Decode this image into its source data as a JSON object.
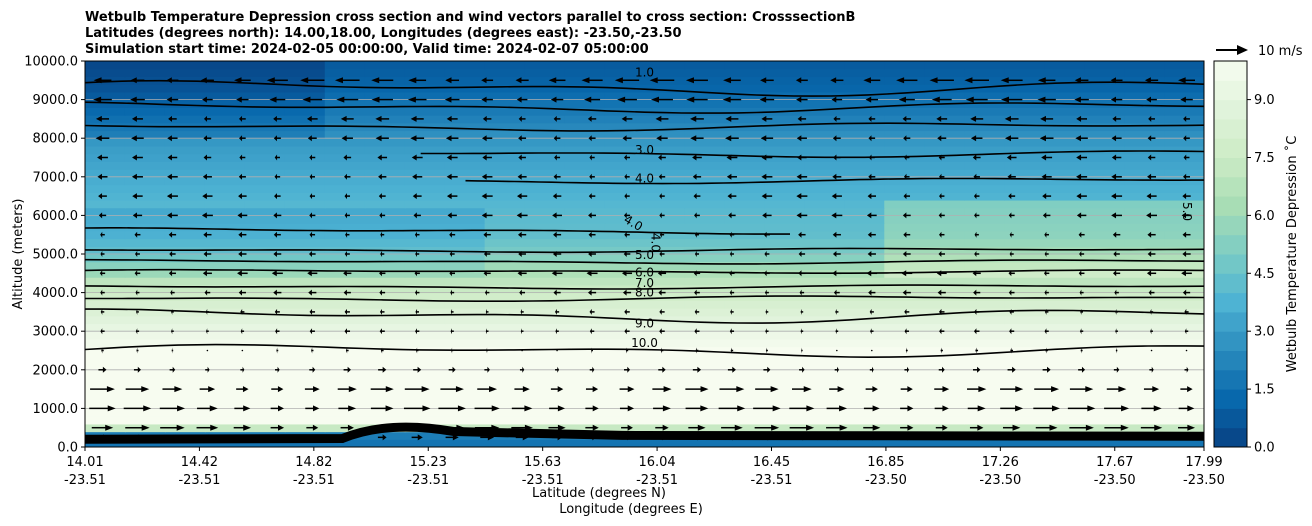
{
  "chart_data": {
    "type": "heatmap",
    "title_lines": [
      "Wetbulb Temperature Depression cross section and wind vectors parallel to cross section: CrosssectionB",
      "Latitudes (degrees north): 14.00,18.00, Longitudes (degrees east): -23.50,-23.50",
      "Simulation start time: 2024-02-05 00:00:00, Valid time: 2024-02-07 05:00:00"
    ],
    "xlabel": "Latitude (degrees N)",
    "xlabel2": "Longitude (degrees E)",
    "ylabel": "Altitude (meters)",
    "ylim": [
      0,
      10000
    ],
    "x_ticks": [
      {
        "lat": "14.01",
        "lon": "-23.51"
      },
      {
        "lat": "14.42",
        "lon": "-23.51"
      },
      {
        "lat": "14.82",
        "lon": "-23.51"
      },
      {
        "lat": "15.23",
        "lon": "-23.51"
      },
      {
        "lat": "15.63",
        "lon": "-23.51"
      },
      {
        "lat": "16.04",
        "lon": "-23.51"
      },
      {
        "lat": "16.45",
        "lon": "-23.51"
      },
      {
        "lat": "16.85",
        "lon": "-23.50"
      },
      {
        "lat": "17.26",
        "lon": "-23.50"
      },
      {
        "lat": "17.67",
        "lon": "-23.50"
      },
      {
        "lat": "17.99",
        "lon": "-23.50"
      }
    ],
    "y_ticks": [
      "0.0",
      "1000.0",
      "2000.0",
      "3000.0",
      "4000.0",
      "5000.0",
      "6000.0",
      "7000.0",
      "8000.0",
      "9000.0",
      "10000.0"
    ],
    "y_values": [
      0,
      1000,
      2000,
      3000,
      4000,
      5000,
      6000,
      7000,
      8000,
      9000,
      10000
    ],
    "colorbar": {
      "label": "Wetbulb Temperature Depression ˚C",
      "range": [
        0,
        10
      ],
      "ticks": [
        "0.0",
        "1.5",
        "3.0",
        "4.5",
        "6.0",
        "7.5",
        "9.0"
      ],
      "tick_values": [
        0,
        1.5,
        3,
        4.5,
        6,
        7.5,
        9
      ],
      "colors": [
        "#084081",
        "#0868ac",
        "#2b8cbe",
        "#4eb3d3",
        "#7bccc4",
        "#a8ddb5",
        "#ccebc5",
        "#e0f3db",
        "#f7fcf0"
      ]
    },
    "contour_labels": [
      {
        "text": "1.0",
        "x": 0.5,
        "z": 9700
      },
      {
        "text": "3.0",
        "x": 0.5,
        "z": 7700
      },
      {
        "text": "4.0",
        "x": 0.5,
        "z": 6950
      },
      {
        "text": "4.0",
        "x": 0.49,
        "z": 5800
      },
      {
        "text": "4.0",
        "x": 0.51,
        "z": 5300
      },
      {
        "text": "5.0",
        "x": 0.5,
        "z": 4970
      },
      {
        "text": "6.0",
        "x": 0.5,
        "z": 4520
      },
      {
        "text": "7.0",
        "x": 0.5,
        "z": 4250
      },
      {
        "text": "8.0",
        "x": 0.5,
        "z": 4000
      },
      {
        "text": "9.0",
        "x": 0.5,
        "z": 3200
      },
      {
        "text": "10.0",
        "x": 0.5,
        "z": 2700
      },
      {
        "text": "5.0",
        "x": 0.985,
        "z": 6100
      }
    ],
    "wind_legend": "10 m/s",
    "wind_profile": [
      {
        "z": 250,
        "u": 5
      },
      {
        "z": 500,
        "u": 9
      },
      {
        "z": 1000,
        "u": 10
      },
      {
        "z": 1500,
        "u": 9
      },
      {
        "z": 2000,
        "u": 3
      },
      {
        "z": 2500,
        "u": -1
      },
      {
        "z": 3000,
        "u": -2
      },
      {
        "z": 3500,
        "u": -2
      },
      {
        "z": 4000,
        "u": -3
      },
      {
        "z": 4500,
        "u": -4
      },
      {
        "z": 5000,
        "u": -3
      },
      {
        "z": 5500,
        "u": -3
      },
      {
        "z": 6000,
        "u": -4
      },
      {
        "z": 6500,
        "u": -4
      },
      {
        "z": 7000,
        "u": -4
      },
      {
        "z": 7500,
        "u": -4
      },
      {
        "z": 8000,
        "u": -5
      },
      {
        "z": 8500,
        "u": -5
      },
      {
        "z": 9000,
        "u": -8
      },
      {
        "z": 9500,
        "u": -9
      }
    ]
  }
}
